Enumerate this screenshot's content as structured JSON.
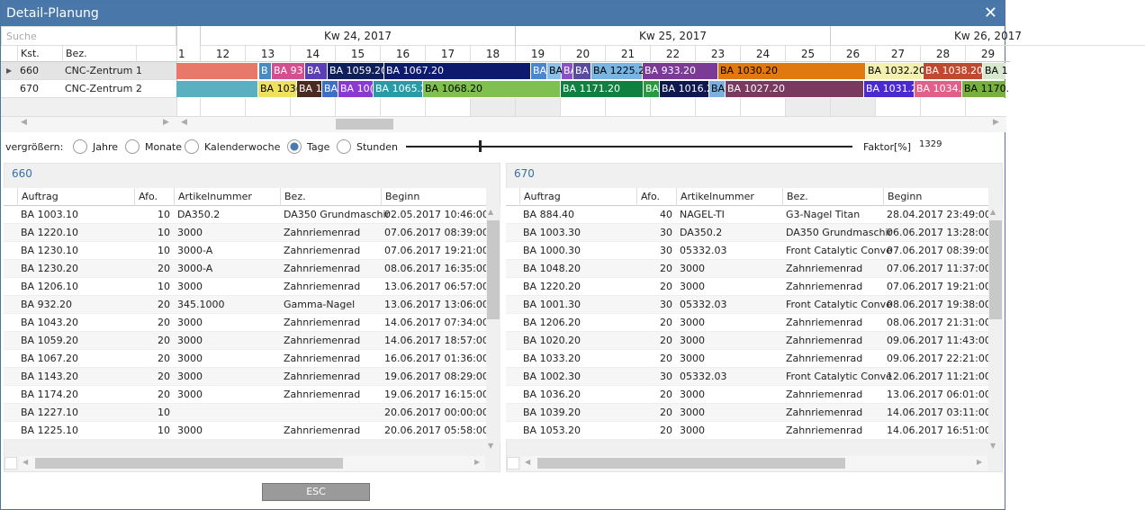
{
  "window": {
    "title": "Detail-Planung"
  },
  "search": {
    "placeholder": "Suche"
  },
  "grid": {
    "columns": [
      "Kst.",
      "Bez."
    ],
    "rows": [
      [
        "660",
        "CNC-Zentrum 1"
      ],
      [
        "670",
        "CNC-Zentrum 2"
      ]
    ]
  },
  "timeline": {
    "weeks": [
      "Kw 24, 2017",
      "Kw 25, 2017",
      "Kw 26, 2017"
    ],
    "days": [
      1,
      12,
      13,
      14,
      15,
      16,
      17,
      18,
      19,
      20,
      21,
      22,
      23,
      24,
      25,
      26,
      27,
      28,
      29
    ],
    "rows": [
      {
        "bars": [
          {
            "color": "#e8786a"
          },
          {
            "label": "B",
            "color": "#4a8ac4"
          },
          {
            "label": "BA 93",
            "color": "#d2508f"
          },
          {
            "label": "BA",
            "color": "#5a3fb8"
          },
          {
            "label": "BA 1059.20",
            "color": "#101e5a"
          },
          {
            "label": "BA 1067.20",
            "color": "#0d1a6e"
          },
          {
            "label": "BA",
            "color": "#4a86d0"
          },
          {
            "label": "BA",
            "color": "#8cc0e8"
          },
          {
            "label": "BA",
            "color": "#8a50c8"
          },
          {
            "label": "BA",
            "color": "#5a4aa0"
          },
          {
            "label": "BA 1225.2",
            "color": "#7ab4e0"
          },
          {
            "label": "BA 933.20",
            "color": "#7a3a96"
          },
          {
            "label": "BA 1030.20",
            "color": "#e07a10"
          },
          {
            "label": "BA 1032.20",
            "color": "#f4f0b0"
          },
          {
            "label": "BA 1038.20",
            "color": "#c04a30"
          },
          {
            "label": "BA 1",
            "color": "#d8e8d0"
          }
        ]
      },
      {
        "bars": [
          {
            "color": "#5ab0c0"
          },
          {
            "label": "BA 103(",
            "color": "#f0e060"
          },
          {
            "label": "BA 1",
            "color": "#4a2a20"
          },
          {
            "label": "BA",
            "color": "#3a70c8"
          },
          {
            "label": "BA 10(",
            "color": "#8a3ad0"
          },
          {
            "label": "BA 1065.2",
            "color": "#2a9aa8"
          },
          {
            "label": "BA 1068.20",
            "color": "#80c050"
          },
          {
            "label": "BA 1171.20",
            "color": "#108040"
          },
          {
            "label": "BA",
            "color": "#2a9a40"
          },
          {
            "label": "BA 1016.2",
            "color": "#101850"
          },
          {
            "label": "BA",
            "color": "#7ab0e0"
          },
          {
            "label": "BA 1027.20",
            "color": "#7a3a60"
          },
          {
            "label": "BA 1031.2",
            "color": "#4a2ad0"
          },
          {
            "label": "BA 1034.2",
            "color": "#e0608a"
          },
          {
            "label": "BA 1170.",
            "color": "#78b040"
          }
        ]
      }
    ]
  },
  "zoom": {
    "label": "vergrößern:",
    "options": [
      "Jahre",
      "Monate",
      "Kalenderwoche",
      "Tage",
      "Stunden"
    ],
    "selected": "Tage",
    "factor_label": "Faktor[%]",
    "factor": 1329
  },
  "panels": [
    {
      "title": "660",
      "columns": [
        "Auftrag",
        "Afo.",
        "Artikelnummer",
        "Bez.",
        "Beginn"
      ],
      "rows": [
        [
          "BA 1003.10",
          10,
          "DA350.2",
          "DA350 Grundmaschir",
          "02.05.2017 10:46:00"
        ],
        [
          "BA 1220.10",
          10,
          "3000",
          "Zahnriemenrad",
          "07.06.2017 08:39:00"
        ],
        [
          "BA 1230.10",
          10,
          "3000-A",
          "Zahnriemenrad",
          "07.06.2017 19:21:00"
        ],
        [
          "BA 1230.20",
          20,
          "3000-A",
          "Zahnriemenrad",
          "08.06.2017 16:35:00"
        ],
        [
          "BA 1206.10",
          10,
          "3000",
          "Zahnriemenrad",
          "13.06.2017 06:57:00"
        ],
        [
          "BA 932.20",
          20,
          "345.1000",
          "Gamma-Nagel",
          "13.06.2017 13:06:00"
        ],
        [
          "BA 1043.20",
          20,
          "3000",
          "Zahnriemenrad",
          "14.06.2017 07:34:00"
        ],
        [
          "BA 1059.20",
          20,
          "3000",
          "Zahnriemenrad",
          "14.06.2017 18:57:00"
        ],
        [
          "BA 1067.20",
          20,
          "3000",
          "Zahnriemenrad",
          "16.06.2017 01:36:00"
        ],
        [
          "BA 1143.20",
          20,
          "3000",
          "Zahnriemenrad",
          "19.06.2017 08:29:00"
        ],
        [
          "BA 1174.20",
          20,
          "3000",
          "Zahnriemenrad",
          "19.06.2017 16:15:00"
        ],
        [
          "BA 1227.10",
          10,
          null,
          null,
          "20.06.2017 00:00:00"
        ],
        [
          "BA 1225.10",
          10,
          "3000",
          "Zahnriemenrad",
          "20.06.2017 05:58:00"
        ]
      ]
    },
    {
      "title": "670",
      "columns": [
        "Auftrag",
        "Afo.",
        "Artikelnummer",
        "Bez.",
        "Beginn"
      ],
      "rows": [
        [
          "BA 884.40",
          40,
          "NAGEL-TI",
          "G3-Nagel Titan",
          "28.04.2017 23:49:00"
        ],
        [
          "BA 1003.30",
          30,
          "DA350.2",
          "DA350 Grundmaschir",
          "06.06.2017 13:28:00"
        ],
        [
          "BA 1000.30",
          30,
          "05332.03",
          "Front Catalytic Conve",
          "07.06.2017 08:39:00"
        ],
        [
          "BA 1048.20",
          20,
          "3000",
          "Zahnriemenrad",
          "07.06.2017 11:37:00"
        ],
        [
          "BA 1220.20",
          20,
          "3000",
          "Zahnriemenrad",
          "07.06.2017 19:21:00"
        ],
        [
          "BA 1001.30",
          30,
          "05332.03",
          "Front Catalytic Conve",
          "08.06.2017 19:38:00"
        ],
        [
          "BA 1206.20",
          20,
          "3000",
          "Zahnriemenrad",
          "08.06.2017 21:31:00"
        ],
        [
          "BA 1020.20",
          20,
          "3000",
          "Zahnriemenrad",
          "09.06.2017 11:43:00"
        ],
        [
          "BA 1033.20",
          20,
          "3000",
          "Zahnriemenrad",
          "09.06.2017 22:21:00"
        ],
        [
          "BA 1002.30",
          30,
          "05332.03",
          "Front Catalytic Conve",
          "12.06.2017 11:21:00"
        ],
        [
          "BA 1036.20",
          20,
          "3000",
          "Zahnriemenrad",
          "13.06.2017 06:01:00"
        ],
        [
          "BA 1039.20",
          20,
          "3000",
          "Zahnriemenrad",
          "14.06.2017 03:11:00"
        ],
        [
          "BA 1053.20",
          20,
          "3000",
          "Zahnriemenrad",
          "14.06.2017 16:51:00"
        ]
      ]
    }
  ],
  "button": {
    "label": "ESC"
  }
}
